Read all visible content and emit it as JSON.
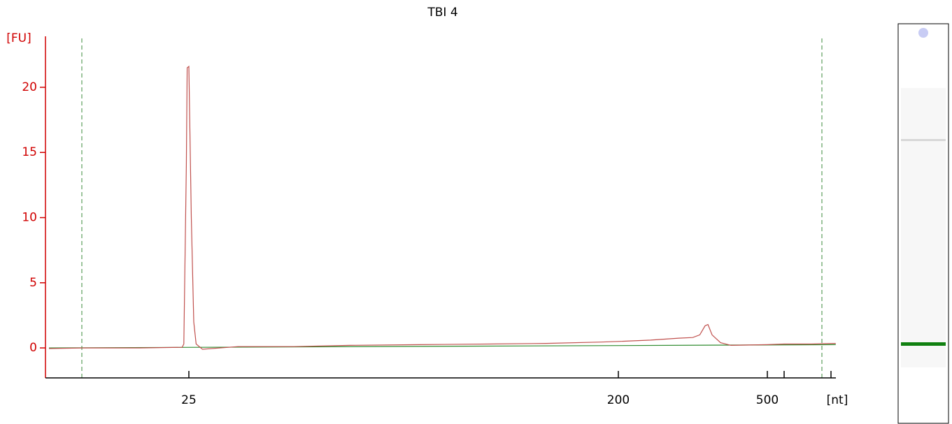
{
  "chart_data": {
    "type": "line",
    "title": "TBI 4",
    "y_label": "[FU]",
    "x_label": "[nt]",
    "x": [
      12.7,
      14.9,
      19.7,
      24.2,
      24.4,
      24.7,
      24.8,
      25.0,
      25.3,
      25.6,
      25.9,
      26.7,
      31.7,
      41.6,
      54.5,
      76.4,
      107,
      141,
      184,
      200,
      244,
      290,
      316,
      330,
      341,
      347,
      356,
      375,
      400,
      500,
      1000,
      2240,
      4600
    ],
    "series": [
      {
        "color": "#c0504d",
        "values": [
          -0.05,
          0,
          0,
          0.05,
          0.3,
          14,
          21.5,
          21.6,
          10,
          2,
          0.3,
          -0.1,
          0.1,
          0.1,
          0.2,
          0.25,
          0.3,
          0.35,
          0.45,
          0.5,
          0.6,
          0.75,
          0.8,
          1.0,
          1.7,
          1.8,
          1.0,
          0.4,
          0.2,
          0.25,
          0.3,
          0.3,
          0.35
        ]
      }
    ],
    "baseline": {
      "color": "#2e8b2e",
      "x": [
        12.7,
        4600
      ],
      "values": [
        0,
        0.25
      ]
    },
    "xlim": [
      12.7,
      4600
    ],
    "xticks": [
      25,
      200,
      500,
      {
        "value": 1000,
        "label": null
      },
      {
        "value": 4000,
        "label": null
      }
    ],
    "ylim": [
      -2.3,
      23.75
    ],
    "yticks": [
      0,
      5,
      10,
      15,
      20
    ],
    "x_scale": "ladder"
  }
}
